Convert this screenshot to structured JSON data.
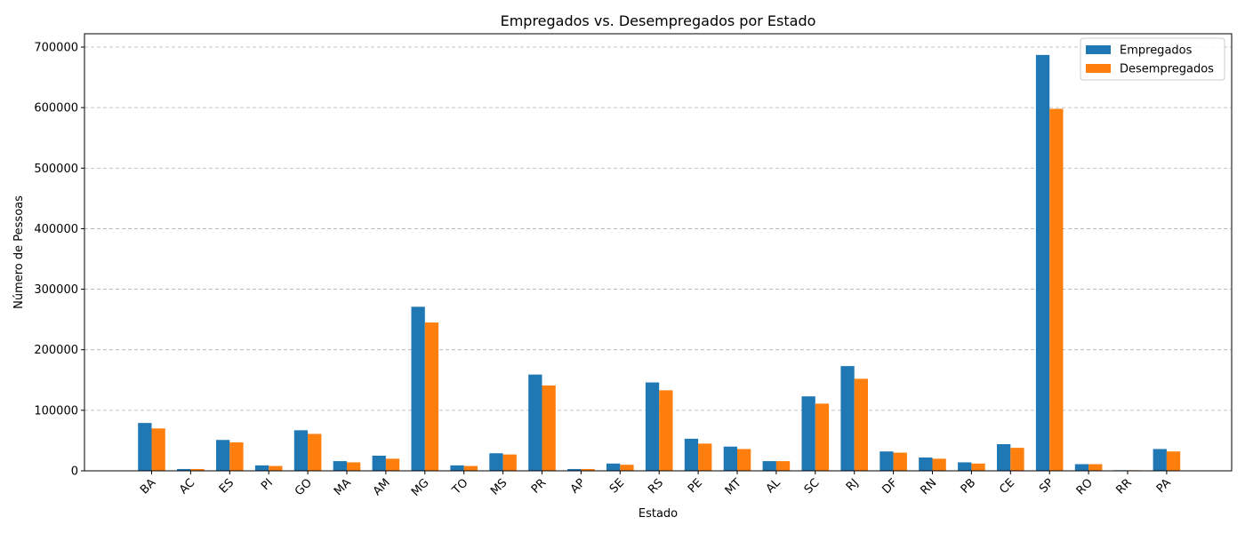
{
  "chart_data": {
    "type": "bar",
    "title": "Empregados vs. Desempregados por Estado",
    "xlabel": "Estado",
    "ylabel": "Número de Pessoas",
    "categories": [
      "BA",
      "AC",
      "ES",
      "PI",
      "GO",
      "MA",
      "AM",
      "MG",
      "TO",
      "MS",
      "PR",
      "AP",
      "SE",
      "RS",
      "PE",
      "MT",
      "AL",
      "SC",
      "RJ",
      "DF",
      "RN",
      "PB",
      "CE",
      "SP",
      "RO",
      "RR",
      "PA"
    ],
    "series": [
      {
        "name": "Empregados",
        "color": "#1f77b4",
        "values": [
          79000,
          3000,
          51000,
          9000,
          67000,
          16000,
          25000,
          271000,
          9000,
          29000,
          159000,
          3000,
          12000,
          146000,
          53000,
          40000,
          16000,
          123000,
          173000,
          32000,
          22000,
          14000,
          44000,
          687000,
          11000,
          1000,
          36000
        ]
      },
      {
        "name": "Desempregados",
        "color": "#ff7f0e",
        "values": [
          70000,
          3000,
          47000,
          8000,
          61000,
          14000,
          20000,
          245000,
          8000,
          27000,
          141000,
          3000,
          10000,
          133000,
          45000,
          36000,
          16000,
          111000,
          152000,
          30000,
          20000,
          12000,
          38000,
          598000,
          11000,
          1000,
          32000
        ]
      }
    ],
    "ylim": [
      0,
      722000
    ],
    "yticks": [
      0,
      100000,
      200000,
      300000,
      400000,
      500000,
      600000,
      700000
    ],
    "ytick_labels": [
      "0",
      "100000",
      "200000",
      "300000",
      "400000",
      "500000",
      "600000",
      "700000"
    ],
    "grid": "y-dashed",
    "legend_position": "top-right"
  }
}
